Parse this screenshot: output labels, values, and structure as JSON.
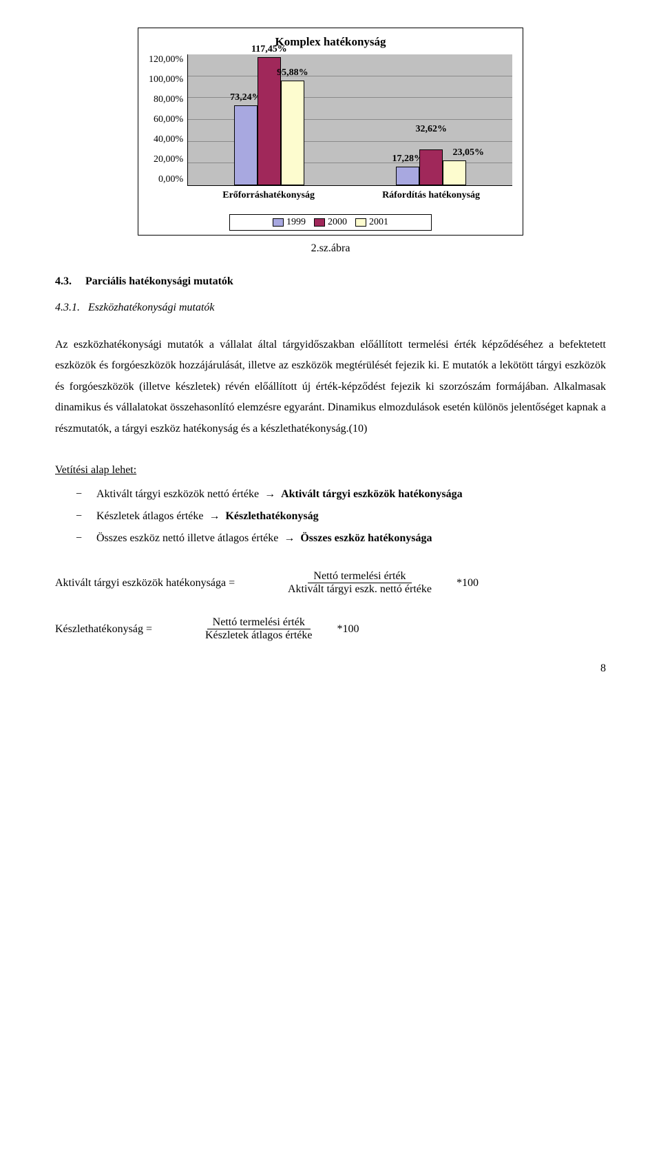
{
  "chart": {
    "type": "bar",
    "title": "Komplex hatékonyság",
    "categories": [
      "Erőforráshatékonyság",
      "Ráfordítás hatékonyság"
    ],
    "series": [
      {
        "name": "1999",
        "color": "#a8a8e0",
        "values": [
          73.24,
          17.28
        ]
      },
      {
        "name": "2000",
        "color": "#a0285a",
        "values": [
          117.45,
          32.62
        ]
      },
      {
        "name": "2001",
        "color": "#fdfccf",
        "values": [
          95.88,
          23.05
        ]
      }
    ],
    "value_labels": [
      [
        "73,24%",
        "117,45%",
        "95,88%"
      ],
      [
        "17,28%",
        "32,62%",
        "23,05%"
      ]
    ],
    "y_ticks": [
      "120,00%",
      "100,00%",
      "80,00%",
      "60,00%",
      "40,00%",
      "20,00%",
      "0,00%"
    ],
    "y_max": 120,
    "background_color": "#c0c0c0",
    "grid_color": "#8a8a8a",
    "caption": "2.sz.ábra"
  },
  "sec": {
    "num": "4.3.",
    "title": "Parciális hatékonysági mutatók"
  },
  "subsec": {
    "num": "4.3.1.",
    "title": "Eszközhatékonysági mutatók"
  },
  "para1": "Az eszközhatékonysági mutatók a vállalat által tárgyidőszakban előállított termelési érték képződéséhez a befektetett eszközök és forgóeszközök hozzájárulását, illetve az eszközök megtérülését fejezik ki. E mutatók a lekötött tárgyi eszközök és forgóeszközök (illetve készletek) révén előállított új érték-képződést fejezik ki szorzószám formájában. Alkalmasak dinamikus és vállalatokat összehasonlító elemzésre egyaránt. Dinamikus elmozdulások esetén különös jelentőséget kapnak a részmutatók, a tárgyi eszköz hatékonyság és a készlethatékonyság.(10)",
  "list_heading": "Vetítési alap lehet:",
  "list": [
    {
      "left": "Aktivált tárgyi eszközök nettó értéke",
      "right": "Aktivált tárgyi eszközök hatékonysága"
    },
    {
      "left": "Készletek átlagos értéke",
      "right": "Készlethatékonyság"
    },
    {
      "left": "Összes eszköz nettó illetve átlagos értéke",
      "right": "Összes eszköz hatékonysága"
    }
  ],
  "formula1": {
    "lhs": "Aktivált tárgyi eszközök hatékonysága =",
    "num": "Nettó termelési érték",
    "den": "Aktivált tárgyi eszk. nettó értéke",
    "suffix": "*100"
  },
  "formula2": {
    "lhs": "Készlethatékonyság =",
    "num": "Nettó termelési érték",
    "den": "Készletek átlagos értéke",
    "suffix": "*100"
  },
  "page": "8"
}
